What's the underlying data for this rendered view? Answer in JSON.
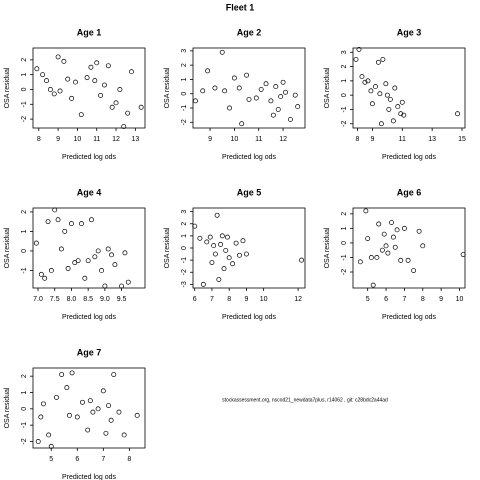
{
  "title": "Fleet 1",
  "footnote": "stockassessment.org, nscod21_newdata7plus, r14062 , git: c28bdc2a44ad",
  "chart_data": [
    {
      "type": "scatter",
      "title": "Age 1",
      "x_label": "Predicted log ods",
      "y_label": "OSA residual",
      "x": [
        7.9,
        8.2,
        8.4,
        8.6,
        8.8,
        9.0,
        9.1,
        9.3,
        9.5,
        9.7,
        9.9,
        10.2,
        10.5,
        10.7,
        10.9,
        11.0,
        11.2,
        11.4,
        11.6,
        11.8,
        12.0,
        12.2,
        12.4,
        12.6,
        12.8,
        13.3
      ],
      "values": [
        1.4,
        1.0,
        0.6,
        0.0,
        -0.3,
        2.2,
        -0.1,
        1.9,
        0.7,
        -0.6,
        0.5,
        -1.7,
        0.8,
        1.5,
        0.6,
        1.8,
        -0.4,
        0.3,
        1.6,
        -1.2,
        -0.9,
        0.0,
        -2.5,
        -1.6,
        1.2,
        -1.2
      ],
      "xlim": [
        7.7,
        13.5
      ],
      "xticks": [
        8,
        9,
        10,
        11,
        12,
        13
      ],
      "ylim": [
        -2.6,
        2.8
      ],
      "yticks": [
        -2,
        -1,
        0,
        1,
        2
      ]
    },
    {
      "type": "scatter",
      "title": "Age 2",
      "x_label": "Predicted log ods",
      "y_label": "OSA residual",
      "x": [
        8.4,
        8.7,
        8.9,
        9.2,
        9.5,
        9.6,
        9.8,
        10.0,
        10.2,
        10.3,
        10.5,
        10.6,
        10.9,
        11.1,
        11.3,
        11.5,
        11.6,
        11.7,
        11.8,
        11.9,
        12.0,
        12.1,
        12.3,
        12.5,
        12.6
      ],
      "values": [
        -0.5,
        0.2,
        1.6,
        0.4,
        2.9,
        0.2,
        -1.0,
        1.1,
        0.4,
        -2.1,
        1.3,
        -0.4,
        -0.3,
        0.3,
        0.7,
        -0.5,
        -1.5,
        0.5,
        -1.1,
        -0.2,
        0.8,
        0.1,
        -1.8,
        -0.1,
        -0.9
      ],
      "xlim": [
        8.3,
        12.9
      ],
      "xticks": [
        9,
        10,
        11,
        12
      ],
      "ylim": [
        -2.4,
        3.2
      ],
      "yticks": [
        -2,
        -1,
        0,
        1,
        2,
        3
      ]
    },
    {
      "type": "scatter",
      "title": "Age 3",
      "x_label": "Predicted log ods",
      "y_label": "OSA residual",
      "x": [
        7.9,
        8.1,
        8.3,
        8.5,
        8.7,
        8.9,
        9.0,
        9.2,
        9.4,
        9.5,
        9.6,
        9.7,
        9.9,
        10.0,
        10.1,
        10.2,
        10.4,
        10.5,
        10.7,
        10.9,
        11.0,
        11.1,
        14.7
      ],
      "values": [
        2.5,
        3.2,
        1.3,
        0.9,
        1.0,
        0.3,
        -0.6,
        0.6,
        2.3,
        0.1,
        -2.0,
        2.5,
        0.8,
        0.0,
        -1.0,
        -0.3,
        -1.8,
        0.5,
        -0.8,
        -1.3,
        -0.5,
        -1.4,
        -1.3
      ],
      "xlim": [
        7.7,
        15.2
      ],
      "xticks": [
        8,
        9,
        11,
        13,
        15
      ],
      "ylim": [
        -2.3,
        3.3
      ],
      "yticks": [
        -2,
        -1,
        0,
        1,
        2,
        3
      ]
    },
    {
      "type": "scatter",
      "title": "Age 4",
      "x_label": "Predicted log ods",
      "y_label": "OSA residual",
      "x": [
        6.95,
        7.1,
        7.2,
        7.3,
        7.4,
        7.5,
        7.6,
        7.7,
        7.8,
        7.9,
        8.0,
        8.1,
        8.2,
        8.3,
        8.4,
        8.5,
        8.6,
        8.7,
        8.8,
        8.9,
        9.0,
        9.1,
        9.2,
        9.3,
        9.5,
        9.6,
        9.7
      ],
      "values": [
        0.4,
        -1.2,
        -1.4,
        1.5,
        -1.0,
        2.1,
        1.6,
        0.1,
        1.0,
        -0.9,
        1.4,
        -0.6,
        -0.5,
        1.4,
        -1.4,
        -0.5,
        1.6,
        -0.3,
        0.0,
        -1.0,
        -1.8,
        0.1,
        -0.2,
        -0.7,
        -1.8,
        -0.1,
        -1.6
      ],
      "xlim": [
        6.85,
        10.2
      ],
      "xticks": [
        {
          "value": 7,
          "label": "7.0"
        },
        {
          "value": 7.5,
          "label": "7.5"
        },
        {
          "value": 8,
          "label": "8.0"
        },
        {
          "value": 8.5,
          "label": "8.5"
        },
        {
          "value": 9,
          "label": "9.0"
        },
        {
          "value": 9.5,
          "label": "9.5"
        }
      ],
      "ylim": [
        -1.9,
        2.2
      ],
      "yticks": [
        -1,
        0,
        1,
        2
      ]
    },
    {
      "type": "scatter",
      "title": "Age 5",
      "x_label": "Predicted log ods",
      "y_label": "OSA residual",
      "x": [
        6.0,
        6.3,
        6.5,
        6.7,
        6.9,
        7.0,
        7.1,
        7.2,
        7.3,
        7.4,
        7.5,
        7.6,
        7.7,
        7.8,
        7.9,
        8.0,
        8.2,
        8.4,
        8.6,
        8.8,
        9.0,
        12.2
      ],
      "values": [
        1.8,
        0.8,
        -3.0,
        0.5,
        0.9,
        -1.2,
        0.2,
        -0.5,
        2.7,
        -2.6,
        0.3,
        1.0,
        -1.7,
        -0.2,
        0.9,
        -0.8,
        -1.3,
        0.4,
        -0.6,
        0.6,
        -0.5,
        -1.0
      ],
      "xlim": [
        5.9,
        12.4
      ],
      "xticks": [
        6,
        7,
        8,
        9,
        10,
        12
      ],
      "ylim": [
        -3.3,
        3.3
      ],
      "yticks": [
        -3,
        -2,
        -1,
        0,
        1,
        2,
        3
      ]
    },
    {
      "type": "scatter",
      "title": "Age 6",
      "x_label": "Predicted log ods",
      "y_label": "OSA residual",
      "x": [
        4.6,
        4.9,
        5.0,
        5.2,
        5.3,
        5.5,
        5.6,
        5.8,
        5.9,
        6.0,
        6.1,
        6.3,
        6.4,
        6.5,
        6.6,
        6.8,
        7.0,
        7.2,
        7.5,
        7.8,
        8.0,
        10.2
      ],
      "values": [
        -1.3,
        2.2,
        0.3,
        -1.0,
        -2.9,
        -1.0,
        1.3,
        -0.5,
        0.6,
        -0.2,
        -0.7,
        1.4,
        0.4,
        -0.3,
        0.9,
        -1.2,
        1.0,
        -1.2,
        -1.9,
        0.8,
        -0.2,
        -0.8
      ],
      "xlim": [
        4.2,
        10.3
      ],
      "xticks": [
        5,
        6,
        7,
        8,
        9,
        10
      ],
      "ylim": [
        -3.1,
        2.4
      ],
      "yticks": [
        -2,
        -1,
        0,
        1,
        2
      ]
    },
    {
      "type": "scatter",
      "title": "Age 7",
      "x_label": "Predicted log ods",
      "y_label": "OSA residual",
      "x": [
        4.5,
        4.6,
        4.7,
        4.9,
        5.0,
        5.2,
        5.4,
        5.6,
        5.7,
        5.8,
        6.0,
        6.2,
        6.4,
        6.5,
        6.6,
        6.8,
        7.0,
        7.1,
        7.2,
        7.3,
        7.4,
        7.6,
        7.8,
        8.3
      ],
      "values": [
        -2.0,
        -0.5,
        0.3,
        -1.6,
        -2.3,
        0.7,
        2.1,
        1.3,
        -0.4,
        2.2,
        -0.5,
        0.4,
        -1.3,
        0.5,
        -0.2,
        0.0,
        1.1,
        -1.5,
        0.2,
        -0.7,
        2.1,
        -0.2,
        -1.6,
        -0.4
      ],
      "xlim": [
        4.3,
        8.6
      ],
      "xticks": [
        5,
        6,
        7,
        8
      ],
      "ylim": [
        -2.4,
        2.5
      ],
      "yticks": [
        -2,
        -1,
        0,
        1,
        2
      ]
    }
  ]
}
